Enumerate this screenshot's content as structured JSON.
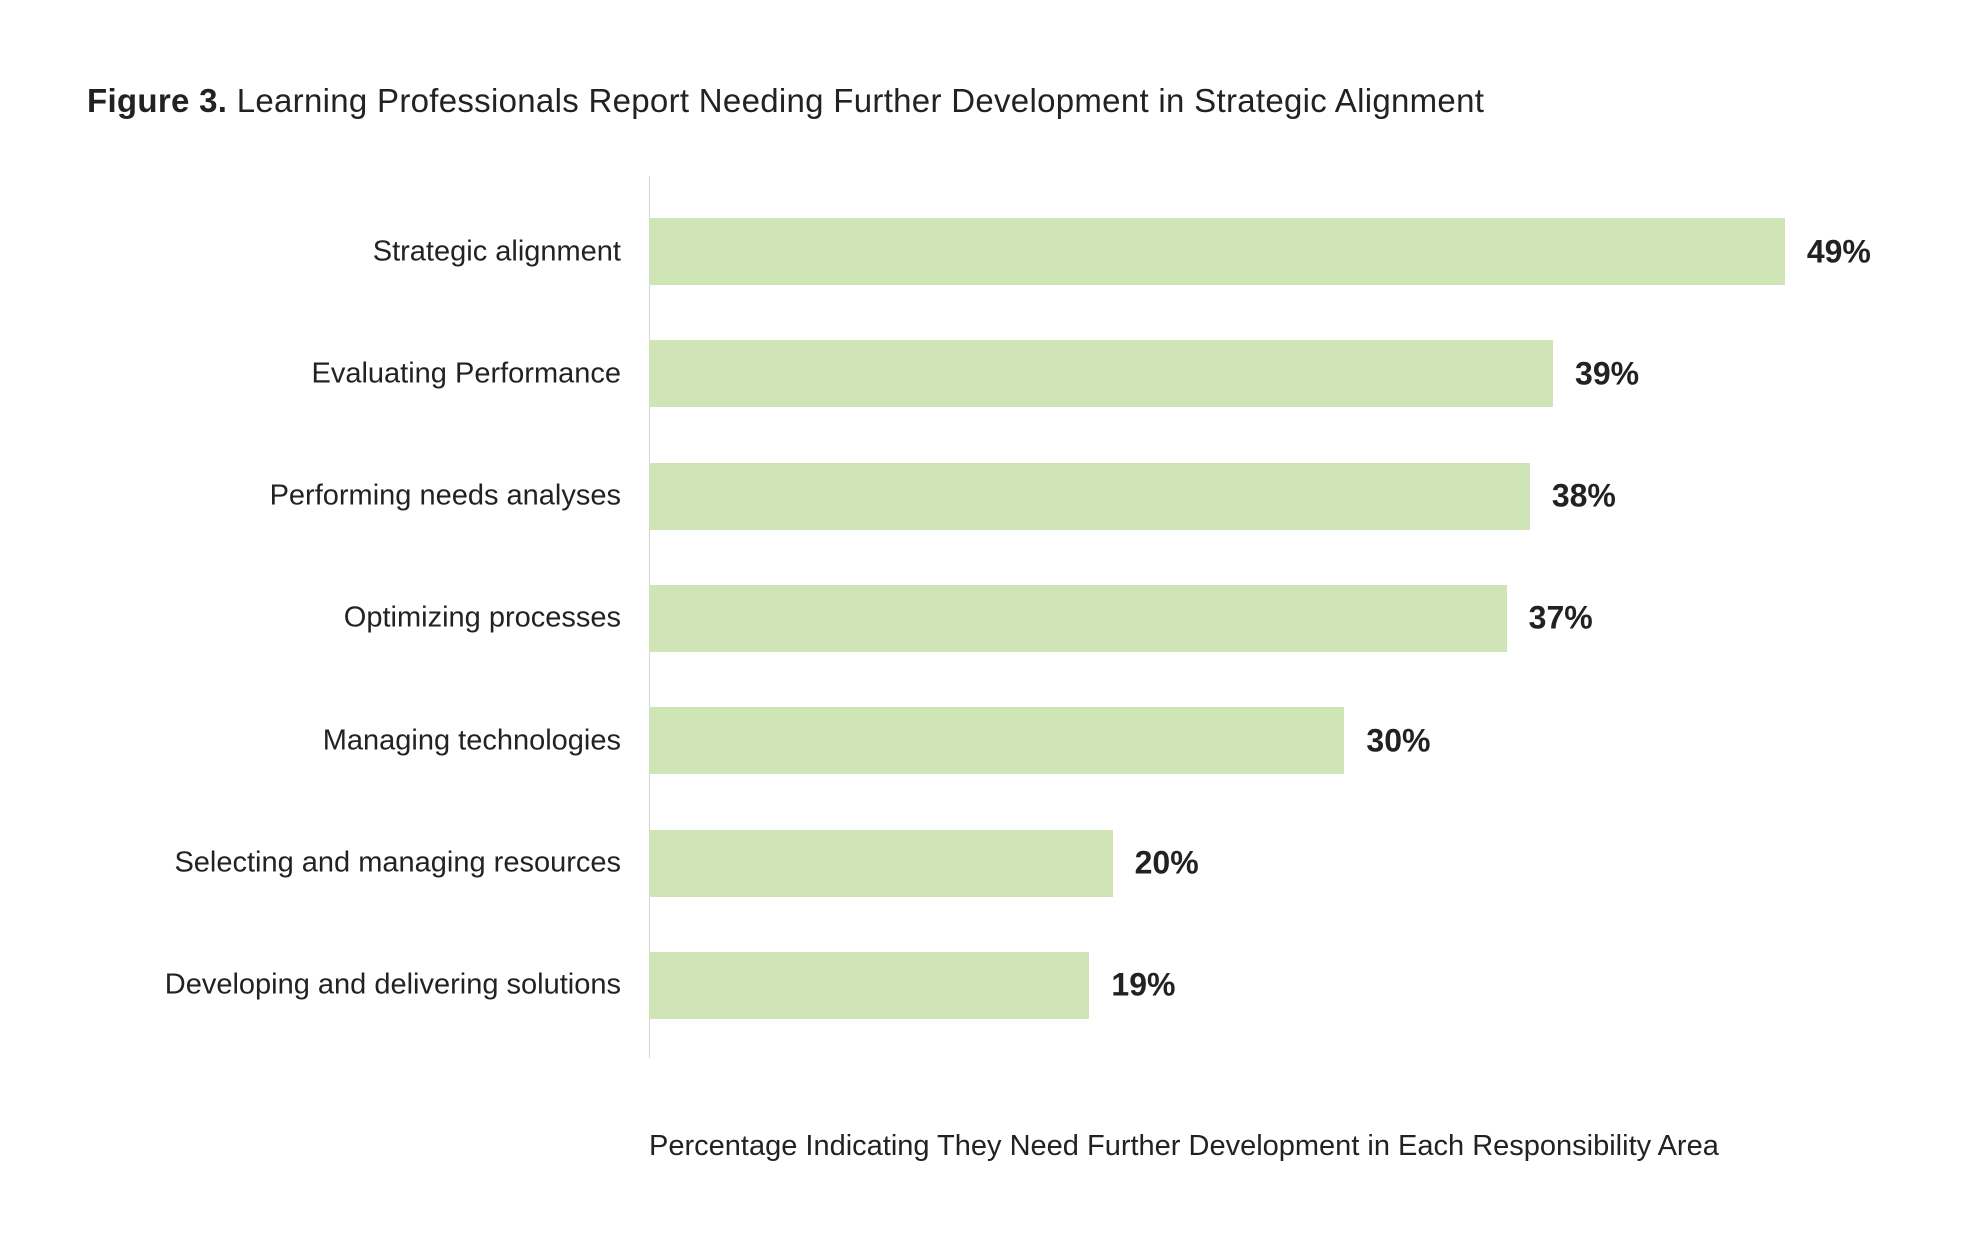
{
  "chart_data": {
    "type": "bar",
    "orientation": "horizontal",
    "title_prefix": "Figure 3.",
    "title": "Learning Professionals Report Needing Further Development in Strategic Alignment",
    "xlabel": "Percentage Indicating They Need Further Development in Each Responsibility Area",
    "ylabel": "",
    "categories": [
      "Strategic alignment",
      "Evaluating Performance",
      "Performing needs analyses",
      "Optimizing processes",
      "Managing technologies",
      "Selecting and managing resources",
      "Developing and delivering solutions"
    ],
    "values": [
      49,
      39,
      38,
      37,
      30,
      20,
      19
    ],
    "value_labels": [
      "49%",
      "39%",
      "38%",
      "37%",
      "30%",
      "20%",
      "19%"
    ],
    "xlim": [
      0,
      50
    ],
    "grid": false,
    "legend": "none",
    "bar_color": "#d0e5b7"
  }
}
